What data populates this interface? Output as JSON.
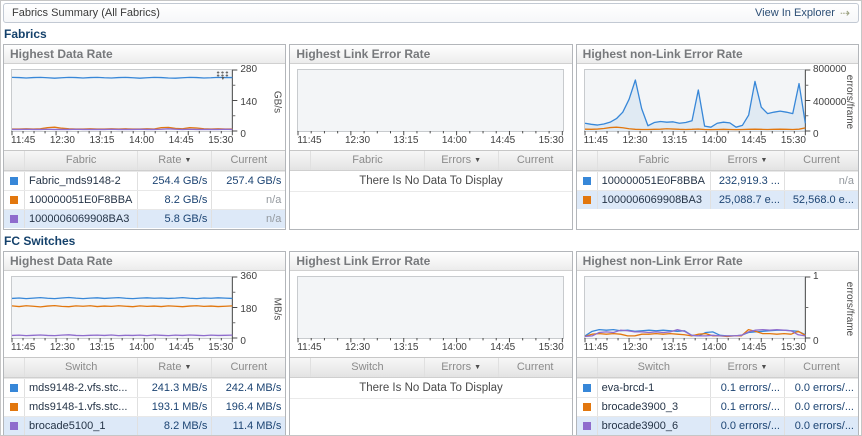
{
  "header": {
    "title": "Fabrics Summary (All Fabrics)",
    "explorer_link": "View In Explorer",
    "explorer_arrow_icon": "arrow-right-icon"
  },
  "colors": {
    "blue": "#3787d8",
    "orange": "#e2770e",
    "purple": "#8f6ccd",
    "row_highlight": "#dde9f8"
  },
  "x_ticks": [
    "11:45",
    "12:30",
    "13:15",
    "14:00",
    "14:45",
    "15:30"
  ],
  "sections": [
    {
      "label": "Fabrics",
      "panels": [
        {
          "title": "Highest Data Rate",
          "has_legend_icon": true,
          "chart": {
            "type": "line",
            "unit": "GB/s",
            "y_ticks": [
              "280",
              "140",
              "0"
            ],
            "ymax": 280,
            "ylim": [
              0,
              280
            ],
            "series": [
              {
                "name": "Fabric_mds9148-2",
                "color": "blue",
                "values": [
                  258,
                  257,
                  255,
                  257,
                  258,
                  256,
                  254,
                  256,
                  258,
                  257,
                  255,
                  257,
                  258,
                  256,
                  255,
                  257,
                  258,
                  256,
                  254,
                  256,
                  258,
                  257,
                  255,
                  254,
                  256,
                  258,
                  257,
                  255,
                  256,
                  258,
                  257,
                  257
                ]
              },
              {
                "name": "100000051E0F8BBA",
                "color": "orange",
                "values": [
                  5,
                  5,
                  6,
                  5,
                  6,
                  12,
                  14,
                  9,
                  6,
                  5,
                  5,
                  6,
                  5,
                  5,
                  6,
                  5,
                  6,
                  5,
                  5,
                  6,
                  5,
                  12,
                  13,
                  8,
                  6,
                  12,
                  10,
                  6,
                  5,
                  6,
                  5,
                  5
                ]
              },
              {
                "name": "1000006069908BA3",
                "color": "purple",
                "values": [
                  3,
                  3,
                  4,
                  3,
                  3,
                  4,
                  3,
                  3,
                  3,
                  4,
                  3,
                  3,
                  3,
                  3,
                  4,
                  3,
                  3,
                  3,
                  4,
                  3,
                  3,
                  4,
                  6,
                  4,
                  3,
                  4,
                  3,
                  3,
                  3,
                  3,
                  4,
                  3
                ]
              }
            ]
          },
          "table": {
            "columns": [
              "Fabric",
              "Rate",
              "Current"
            ],
            "sort_column": "Rate",
            "rows": [
              {
                "swatch": "blue",
                "name": "Fabric_mds9148-2",
                "value": "254.4 GB/s",
                "current": "257.4 GB/s",
                "selected": false
              },
              {
                "swatch": "orange",
                "name": "100000051E0F8BBA",
                "value": "8.2 GB/s",
                "current": "n/a",
                "selected": false
              },
              {
                "swatch": "purple",
                "name": "1000006069908BA3",
                "value": "5.8 GB/s",
                "current": "n/a",
                "selected": true
              }
            ]
          }
        },
        {
          "title": "Highest Link Error Rate",
          "has_legend_icon": false,
          "chart": {
            "type": "line",
            "unit": "",
            "y_ticks": [],
            "ymax": 1,
            "series": []
          },
          "table": {
            "columns": [
              "Fabric",
              "Errors",
              "Current"
            ],
            "sort_column": "Errors",
            "empty_text": "There Is No Data To Display"
          }
        },
        {
          "title": "Highest non-Link Error Rate",
          "has_legend_icon": false,
          "chart": {
            "type": "line",
            "unit": "errors/frame",
            "y_ticks": [
              "800000",
              "400000",
              "0"
            ],
            "ymax": 800000,
            "ylim": [
              0,
              800000
            ],
            "series": [
              {
                "name": "100000051E0F8BBA",
                "color": "blue",
                "fill": true,
                "values": [
                  95000,
                  80000,
                  70000,
                  85000,
                  110000,
                  160000,
                  250000,
                  430000,
                  700000,
                  300000,
                  60000,
                  105000,
                  120000,
                  110000,
                  115000,
                  95000,
                  105000,
                  130000,
                  560000,
                  55000,
                  40000,
                  95000,
                  110000,
                  100000,
                  40000,
                  65000,
                  210000,
                  680000,
                  320000,
                  230000,
                  250000,
                  265000,
                  250000,
                  230000,
                  650000,
                  95000
                ]
              },
              {
                "name": "1000006069908BA3",
                "color": "orange",
                "values": [
                  12000,
                  10000,
                  14000,
                  22000,
                  35000,
                  40000,
                  32000,
                  18000,
                  10000,
                  8000,
                  8000,
                  10000,
                  12000,
                  18000,
                  14000,
                  10000,
                  8000,
                  10000,
                  14000,
                  8000,
                  6000,
                  8000,
                  10000,
                  8000,
                  6000,
                  8000,
                  10000,
                  12000,
                  10000,
                  8000,
                  10000,
                  12000,
                  10000,
                  8000,
                  12000,
                  30000
                ]
              }
            ]
          },
          "table": {
            "columns": [
              "Fabric",
              "Errors",
              "Current"
            ],
            "sort_column": "Errors",
            "rows": [
              {
                "swatch": "blue",
                "name": "100000051E0F8BBA",
                "value": "232,919.3 ...",
                "current": "n/a",
                "selected": false
              },
              {
                "swatch": "orange",
                "name": "1000006069908BA3",
                "value": "25,088.7 e...",
                "current": "52,568.0 e...",
                "selected": true
              }
            ]
          }
        }
      ]
    },
    {
      "label": "FC Switches",
      "panels": [
        {
          "title": "Highest Data Rate",
          "has_legend_icon": false,
          "chart": {
            "type": "line",
            "unit": "MB/s",
            "y_ticks": [
              "360",
              "180",
              "0"
            ],
            "ymax": 360,
            "ylim": [
              0,
              360
            ],
            "series": [
              {
                "name": "mds9148-2.vfs.stc...",
                "color": "blue",
                "values": [
                  243,
                  246,
                  242,
                  245,
                  248,
                  244,
                  242,
                  246,
                  249,
                  245,
                  242,
                  245,
                  247,
                  243,
                  246,
                  248,
                  244,
                  242,
                  245,
                  247,
                  244,
                  246,
                  243,
                  245,
                  248,
                  244,
                  242,
                  246,
                  244,
                  247,
                  245,
                  243
                ]
              },
              {
                "name": "mds9148-1.vfs.stc...",
                "color": "orange",
                "values": [
                  196,
                  192,
                  197,
                  194,
                  190,
                  195,
                  198,
                  193,
                  191,
                  196,
                  194,
                  197,
                  192,
                  195,
                  193,
                  197,
                  194,
                  191,
                  196,
                  193,
                  195,
                  192,
                  196,
                  194,
                  191,
                  195,
                  197,
                  193,
                  195,
                  192,
                  194,
                  196
                ]
              },
              {
                "name": "brocade5100_1",
                "color": "purple",
                "values": [
                  10,
                  12,
                  9,
                  11,
                  13,
                  10,
                  9,
                  12,
                  14,
                  10,
                  9,
                  11,
                  12,
                  10,
                  13,
                  9,
                  11,
                  10,
                  12,
                  9,
                  13,
                  11,
                  9,
                  12,
                  10,
                  13,
                  11,
                  9,
                  12,
                  10,
                  11,
                  12
                ]
              }
            ]
          },
          "table": {
            "columns": [
              "Switch",
              "Rate",
              "Current"
            ],
            "sort_column": "Rate",
            "rows": [
              {
                "swatch": "blue",
                "name": "mds9148-2.vfs.stc...",
                "value": "241.3 MB/s",
                "current": "242.4 MB/s",
                "selected": false
              },
              {
                "swatch": "orange",
                "name": "mds9148-1.vfs.stc...",
                "value": "193.1 MB/s",
                "current": "196.4 MB/s",
                "selected": false
              },
              {
                "swatch": "purple",
                "name": "brocade5100_1",
                "value": "8.2 MB/s",
                "current": "11.4 MB/s",
                "selected": true
              }
            ]
          }
        },
        {
          "title": "Highest Link Error Rate",
          "has_legend_icon": false,
          "chart": {
            "type": "line",
            "unit": "",
            "y_ticks": [],
            "ymax": 1,
            "series": []
          },
          "table": {
            "columns": [
              "Switch",
              "Errors",
              "Current"
            ],
            "sort_column": "Errors",
            "empty_text": "There Is No Data To Display"
          }
        },
        {
          "title": "Highest non-Link Error Rate",
          "has_legend_icon": false,
          "chart": {
            "type": "line",
            "unit": "errors/frame",
            "y_ticks": [
              "1",
              "0"
            ],
            "ymax": 1,
            "ylim": [
              0,
              1
            ],
            "series": [
              {
                "name": "eva-brcd-1",
                "color": "blue",
                "values": [
                  0.02,
                  0.1,
                  0.13,
                  0.12,
                  0.13,
                  0.11,
                  0.12,
                  0.1,
                  0.11,
                  0.12,
                  0.11,
                  0.12,
                  0.11,
                  0.1,
                  0.11,
                  0.03,
                  0.02,
                  0.08,
                  0.09,
                  0.03,
                  0.02,
                  0.02,
                  0.03,
                  0.08,
                  0.09,
                  0.1,
                  0.11,
                  0.12,
                  0.12,
                  0.11,
                  0.1,
                  0.04
                ]
              },
              {
                "name": "brocade3900_3",
                "color": "orange",
                "values": [
                  0.01,
                  0.05,
                  0.06,
                  0.05,
                  0.06,
                  0.05,
                  0.02,
                  0.02,
                  0.05,
                  0.05,
                  0.06,
                  0.05,
                  0.06,
                  0.05,
                  0.04,
                  0.02,
                  0.05,
                  0.06,
                  0.02,
                  0.02,
                  0.01,
                  0.02,
                  0.02,
                  0.13,
                  0.1,
                  0.06,
                  0.06,
                  0.05,
                  0.06,
                  0.05,
                  0.1,
                  0.03
                ]
              },
              {
                "name": "brocade3900_6",
                "color": "purple",
                "values": [
                  0.01,
                  0.02,
                  0.08,
                  0.09,
                  0.08,
                  0.12,
                  0.11,
                  0.09,
                  0.09,
                  0.08,
                  0.09,
                  0.08,
                  0.09,
                  0.13,
                  0.1,
                  0.03,
                  0.02,
                  0.02,
                  0.03,
                  0.02,
                  0.02,
                  0.02,
                  0.03,
                  0.09,
                  0.12,
                  0.13,
                  0.12,
                  0.13,
                  0.12,
                  0.11,
                  0.04,
                  0.02
                ]
              }
            ]
          },
          "table": {
            "columns": [
              "Switch",
              "Errors",
              "Current"
            ],
            "sort_column": "Errors",
            "rows": [
              {
                "swatch": "blue",
                "name": "eva-brcd-1",
                "value": "0.1 errors/...",
                "current": "0.0 errors/...",
                "selected": false
              },
              {
                "swatch": "orange",
                "name": "brocade3900_3",
                "value": "0.1 errors/...",
                "current": "0.0 errors/...",
                "selected": false
              },
              {
                "swatch": "purple",
                "name": "brocade3900_6",
                "value": "0.0 errors/...",
                "current": "0.0 errors/...",
                "selected": true
              }
            ]
          }
        }
      ]
    }
  ]
}
